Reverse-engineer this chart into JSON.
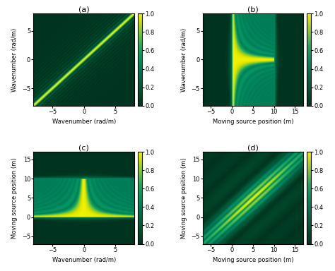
{
  "panel_labels": [
    "(a)",
    "(b)",
    "(c)",
    "(d)"
  ],
  "clim": [
    0,
    1
  ],
  "wavenumber_range": [
    -8,
    8
  ],
  "wavenumber_n": 300,
  "source_range": [
    -7,
    17
  ],
  "source_n": 300,
  "colorbar_ticks": [
    0,
    0.2,
    0.4,
    0.6,
    0.8,
    1.0
  ],
  "xlabel_a": "Wavenumber (rad/m)",
  "ylabel_a": "Wavenumber (rad/m)",
  "xlabel_b": "Moving source position (m)",
  "ylabel_b": "Wavenumber (rad/m)",
  "xlabel_c": "Wavenumber (rad/m)",
  "ylabel_c": "Moving source position (m)",
  "xlabel_d": "Moving source position (m)",
  "ylabel_d": "Moving source position (m)",
  "tick_fontsize": 6,
  "label_fontsize": 6,
  "panel_label_fontsize": 8,
  "background_color": "#ffffff",
  "L": 10.0,
  "kmax": 8.0,
  "omega": 3.14159
}
